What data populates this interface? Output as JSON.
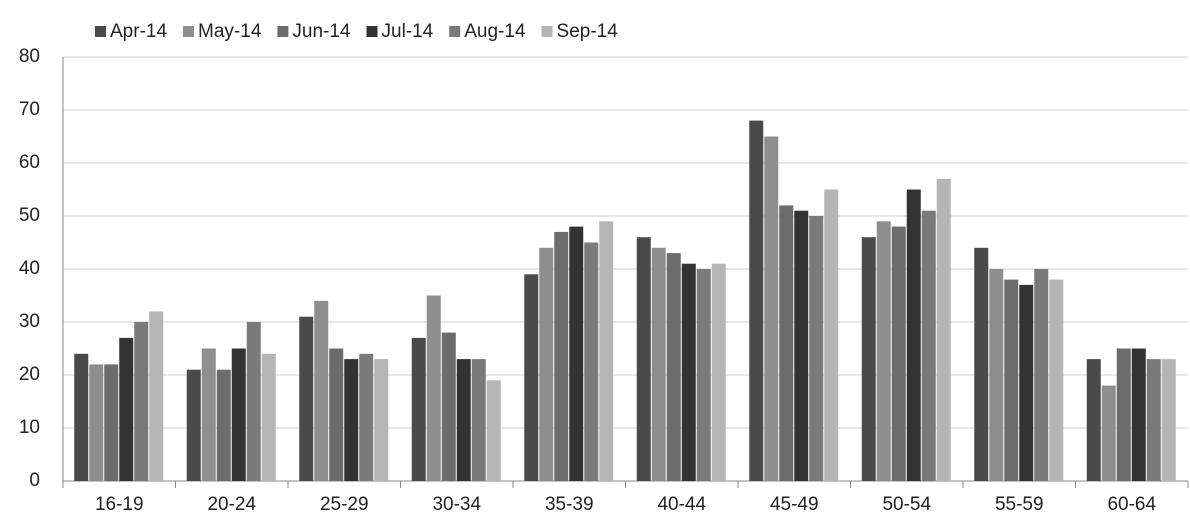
{
  "chart_data": {
    "type": "bar",
    "categories": [
      "16-19",
      "20-24",
      "25-29",
      "30-34",
      "35-39",
      "40-44",
      "45-49",
      "50-54",
      "55-59",
      "60-64"
    ],
    "series": [
      {
        "name": "Apr-14",
        "color": "#4a4a4a",
        "values": [
          24,
          21,
          31,
          27,
          39,
          46,
          68,
          46,
          44,
          23
        ]
      },
      {
        "name": "May-14",
        "color": "#8e8e8e",
        "values": [
          22,
          25,
          34,
          35,
          44,
          44,
          65,
          49,
          40,
          18
        ]
      },
      {
        "name": "Jun-14",
        "color": "#6c6c6c",
        "values": [
          22,
          21,
          25,
          28,
          47,
          43,
          52,
          48,
          38,
          25
        ]
      },
      {
        "name": "Jul-14",
        "color": "#333333",
        "values": [
          27,
          25,
          23,
          23,
          48,
          41,
          51,
          55,
          37,
          25
        ]
      },
      {
        "name": "Aug-14",
        "color": "#7a7a7a",
        "values": [
          30,
          30,
          24,
          23,
          45,
          40,
          50,
          51,
          40,
          23
        ]
      },
      {
        "name": "Sep-14",
        "color": "#b5b5b5",
        "values": [
          32,
          24,
          23,
          19,
          49,
          41,
          55,
          57,
          38,
          23
        ]
      }
    ],
    "ylim": [
      0,
      80
    ],
    "yticks": [
      0,
      10,
      20,
      30,
      40,
      50,
      60,
      70,
      80
    ],
    "grid": true,
    "legend": "top"
  }
}
